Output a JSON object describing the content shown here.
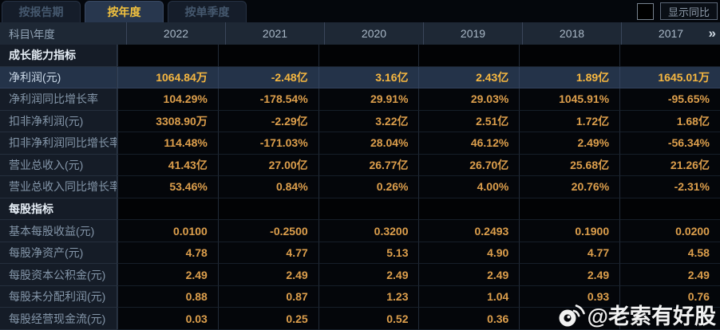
{
  "tabs": [
    {
      "label": "按报告期",
      "active": false
    },
    {
      "label": "按年度",
      "active": true
    },
    {
      "label": "按单季度",
      "active": false
    }
  ],
  "controls": {
    "show_yoy_label": "显示同比",
    "checkbox_checked": false
  },
  "table": {
    "corner_label": "科目\\年度",
    "years": [
      "2022",
      "2021",
      "2020",
      "2019",
      "2018",
      "2017"
    ],
    "more_icon": "»",
    "rows": [
      {
        "type": "section",
        "label": "成长能力指标",
        "values": [
          "",
          "",
          "",
          "",
          "",
          ""
        ]
      },
      {
        "type": "data",
        "label": "净利润(元)",
        "highlight": true,
        "values": [
          "1064.84万",
          "-2.48亿",
          "3.16亿",
          "2.43亿",
          "1.89亿",
          "1645.01万"
        ]
      },
      {
        "type": "data",
        "label": "净利润同比增长率",
        "values": [
          "104.29%",
          "-178.54%",
          "29.91%",
          "29.03%",
          "1045.91%",
          "-95.65%"
        ]
      },
      {
        "type": "data",
        "label": "扣非净利润(元)",
        "values": [
          "3308.90万",
          "-2.29亿",
          "3.22亿",
          "2.51亿",
          "1.72亿",
          "1.68亿"
        ]
      },
      {
        "type": "data",
        "label": "扣非净利润同比增长率",
        "values": [
          "114.48%",
          "-171.03%",
          "28.04%",
          "46.12%",
          "2.49%",
          "-56.34%"
        ]
      },
      {
        "type": "data",
        "label": "营业总收入(元)",
        "values": [
          "41.43亿",
          "27.00亿",
          "26.77亿",
          "26.70亿",
          "25.68亿",
          "21.26亿"
        ]
      },
      {
        "type": "data",
        "label": "营业总收入同比增长率",
        "values": [
          "53.46%",
          "0.84%",
          "0.26%",
          "4.00%",
          "20.76%",
          "-2.31%"
        ]
      },
      {
        "type": "section",
        "label": "每股指标",
        "values": [
          "",
          "",
          "",
          "",
          "",
          ""
        ]
      },
      {
        "type": "data",
        "label": "基本每股收益(元)",
        "values": [
          "0.0100",
          "-0.2500",
          "0.3200",
          "0.2493",
          "0.1900",
          "0.0200"
        ]
      },
      {
        "type": "data",
        "label": "每股净资产(元)",
        "values": [
          "4.78",
          "4.77",
          "5.13",
          "4.90",
          "4.77",
          "4.58"
        ]
      },
      {
        "type": "data",
        "label": "每股资本公积金(元)",
        "values": [
          "2.49",
          "2.49",
          "2.49",
          "2.49",
          "2.49",
          "2.49"
        ]
      },
      {
        "type": "data",
        "label": "每股未分配利润(元)",
        "values": [
          "0.88",
          "0.87",
          "1.23",
          "1.04",
          "0.93",
          "0.76"
        ]
      },
      {
        "type": "data",
        "label": "每股经营现金流(元)",
        "values": [
          "0.03",
          "0.25",
          "0.52",
          "0.36",
          "",
          ""
        ]
      }
    ]
  },
  "watermark": {
    "text": "@老索有好股",
    "icon": "weibo-icon"
  },
  "colors": {
    "accent_gold": "#f3c23e",
    "value_gold": "#dd9f4c",
    "highlight_row_bg": "#243349",
    "header_bg": "#1e2835",
    "label_col_bg": "#151c27"
  }
}
